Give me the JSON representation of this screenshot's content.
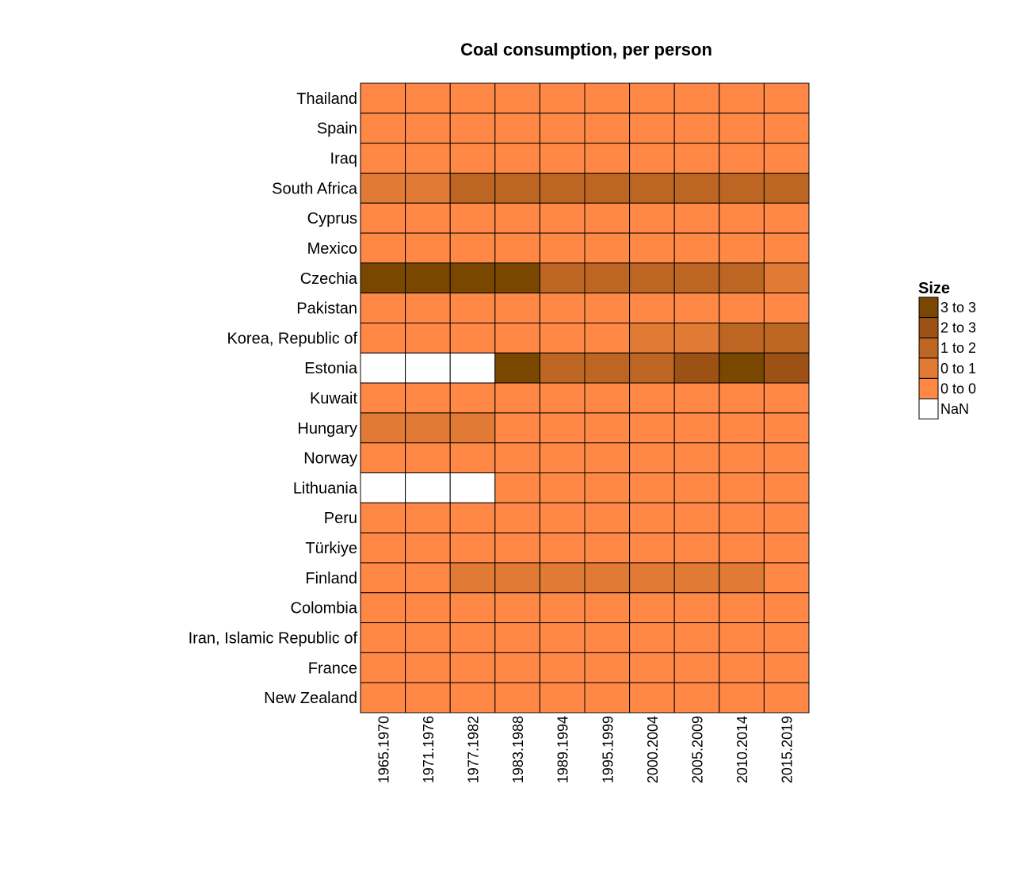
{
  "chart_data": {
    "type": "heatmap",
    "title": "Coal consumption, per person",
    "rows": [
      "Thailand",
      "Spain",
      "Iraq",
      "South Africa",
      "Cyprus",
      "Mexico",
      "Czechia",
      "Pakistan",
      "Korea, Republic of",
      "Estonia",
      "Kuwait",
      "Hungary",
      "Norway",
      "Lithuania",
      "Peru",
      "Türkiye",
      "Finland",
      "Colombia",
      "Iran, Islamic Republic of",
      "France",
      "New Zealand"
    ],
    "columns": [
      "1965.1970",
      "1971.1976",
      "1977.1982",
      "1983.1988",
      "1989.1994",
      "1995.1999",
      "2000.2004",
      "2005.2009",
      "2010.2014",
      "2015.2019"
    ],
    "bin_values": [
      [
        0,
        0,
        0,
        0,
        0,
        0,
        0,
        0,
        0,
        0
      ],
      [
        0,
        0,
        0,
        0,
        0,
        0,
        0,
        0,
        0,
        0
      ],
      [
        0,
        0,
        0,
        0,
        0,
        0,
        0,
        0,
        0,
        0
      ],
      [
        1,
        1,
        2,
        2,
        2,
        2,
        2,
        2,
        2,
        2
      ],
      [
        0,
        0,
        0,
        0,
        0,
        0,
        0,
        0,
        0,
        0
      ],
      [
        0,
        0,
        0,
        0,
        0,
        0,
        0,
        0,
        0,
        0
      ],
      [
        4,
        4,
        4,
        4,
        2,
        2,
        2,
        2,
        2,
        1
      ],
      [
        0,
        0,
        0,
        0,
        0,
        0,
        0,
        0,
        0,
        0
      ],
      [
        0,
        0,
        0,
        0,
        0,
        0,
        1,
        1,
        2,
        2
      ],
      [
        null,
        null,
        null,
        4,
        2,
        2,
        2,
        3,
        4,
        3
      ],
      [
        0,
        0,
        0,
        0,
        0,
        0,
        0,
        0,
        0,
        0
      ],
      [
        1,
        1,
        1,
        0,
        0,
        0,
        0,
        0,
        0,
        0
      ],
      [
        0,
        0,
        0,
        0,
        0,
        0,
        0,
        0,
        0,
        0
      ],
      [
        null,
        null,
        null,
        0,
        0,
        0,
        0,
        0,
        0,
        0
      ],
      [
        0,
        0,
        0,
        0,
        0,
        0,
        0,
        0,
        0,
        0
      ],
      [
        0,
        0,
        0,
        0,
        0,
        0,
        0,
        0,
        0,
        0
      ],
      [
        0,
        0,
        1,
        1,
        1,
        1,
        1,
        1,
        1,
        0
      ],
      [
        0,
        0,
        0,
        0,
        0,
        0,
        0,
        0,
        0,
        0
      ],
      [
        0,
        0,
        0,
        0,
        0,
        0,
        0,
        0,
        0,
        0
      ],
      [
        0,
        0,
        0,
        0,
        0,
        0,
        0,
        0,
        0,
        0
      ],
      [
        0,
        0,
        0,
        0,
        0,
        0,
        0,
        0,
        0,
        0
      ]
    ],
    "bins": [
      {
        "label": "0 to 0",
        "color": "#ff8847"
      },
      {
        "label": "0 to 1",
        "color": "#e07a35"
      },
      {
        "label": "1 to 2",
        "color": "#bd6624"
      },
      {
        "label": "2 to 3",
        "color": "#9e5114"
      },
      {
        "label": "3 to 3",
        "color": "#7a4700"
      }
    ],
    "nan": {
      "label": "NaN",
      "color": "#ffffff"
    },
    "legend": {
      "title": "Size",
      "placement": "right"
    }
  }
}
